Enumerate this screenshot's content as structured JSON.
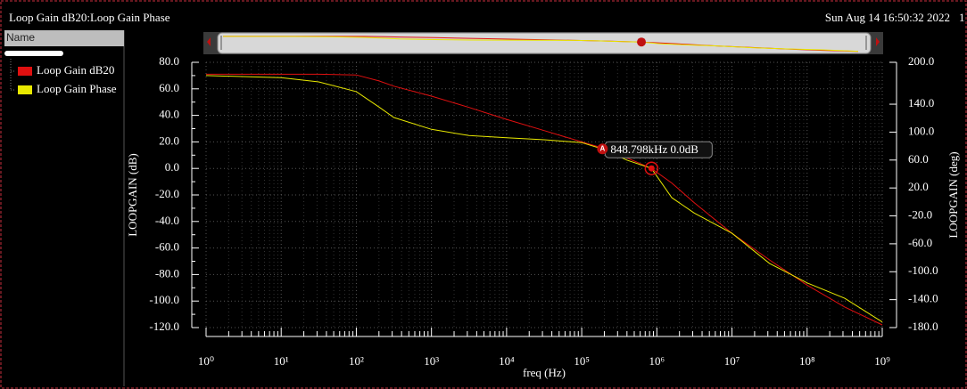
{
  "header": {
    "title": "Loop Gain dB20:Loop Gain Phase",
    "date": "Sun Aug 14 16:50:32 2022",
    "index": "1"
  },
  "sidebar": {
    "column": "Name"
  },
  "chart_data": {
    "type": "line",
    "xlabel": "freq (Hz)",
    "ylabel": "LOOPGAIN (dB)",
    "y2label": "LOOPGAIN (deg)",
    "xscale": "log",
    "grid": true,
    "x": [
      1,
      10,
      31.6,
      100,
      200,
      316,
      1000,
      3160,
      10000,
      31600,
      100000,
      200000,
      398000,
      848798,
      1580000,
      3160000,
      10000000,
      31600000,
      100000000,
      316000000,
      1000000000
    ],
    "series": [
      {
        "name": "Loop Gain dB20",
        "color": "#e01010",
        "values": [
          71,
          71,
          71,
          70.5,
          66,
          62,
          54.5,
          46,
          37,
          28.5,
          20,
          15,
          8,
          0,
          -11,
          -26,
          -49,
          -69,
          -88,
          -104.5,
          -118
        ]
      },
      {
        "name": "Loop Gain Phase",
        "color": "#e8e800",
        "axis": "y2",
        "values": [
          181,
          178,
          172,
          158,
          136,
          121,
          104,
          95,
          92,
          89,
          85,
          75,
          60,
          48,
          6,
          -16,
          -45,
          -88,
          -116,
          -138,
          -172
        ]
      }
    ],
    "xlim": [
      1,
      1000000000
    ],
    "xticks": [
      {
        "value": 1,
        "label": "10⁰"
      },
      {
        "value": 10,
        "label": "10¹"
      },
      {
        "value": 100,
        "label": "10²"
      },
      {
        "value": 1000,
        "label": "10³"
      },
      {
        "value": 10000,
        "label": "10⁴"
      },
      {
        "value": 100000,
        "label": "10⁵"
      },
      {
        "value": 1000000,
        "label": "10⁶"
      },
      {
        "value": 10000000,
        "label": "10⁷"
      },
      {
        "value": 100000000,
        "label": "10⁸"
      },
      {
        "value": 1000000000,
        "label": "10⁹"
      }
    ],
    "ylim": [
      -120,
      80
    ],
    "yticks": [
      {
        "value": 80,
        "label": "80.0"
      },
      {
        "value": 60,
        "label": "60.0"
      },
      {
        "value": 40,
        "label": "40.0"
      },
      {
        "value": 20,
        "label": "20.0"
      },
      {
        "value": 0,
        "label": "0.0"
      },
      {
        "value": -20,
        "label": "-20.0"
      },
      {
        "value": -40,
        "label": "-40.0"
      },
      {
        "value": -60,
        "label": "-60.0"
      },
      {
        "value": -80,
        "label": "-80.0"
      },
      {
        "value": -100,
        "label": "-100.0"
      },
      {
        "value": -120,
        "label": "-120.0"
      }
    ],
    "y2lim": [
      -180,
      200
    ],
    "y2ticks": [
      {
        "value": 200,
        "label": "200.0"
      },
      {
        "value": 140,
        "label": "140.0"
      },
      {
        "value": 100,
        "label": "100.0"
      },
      {
        "value": 60,
        "label": "60.0"
      },
      {
        "value": 20,
        "label": "20.0"
      },
      {
        "value": -20,
        "label": "-20.0"
      },
      {
        "value": -60,
        "label": "-60.0"
      },
      {
        "value": -100,
        "label": "-100.0"
      },
      {
        "value": -140,
        "label": "-140.0"
      },
      {
        "value": -180,
        "label": "-180.0"
      }
    ],
    "marker": {
      "tag": "A",
      "x": 848798,
      "y": 0,
      "label": "848.798kHz 0.0dB"
    }
  }
}
